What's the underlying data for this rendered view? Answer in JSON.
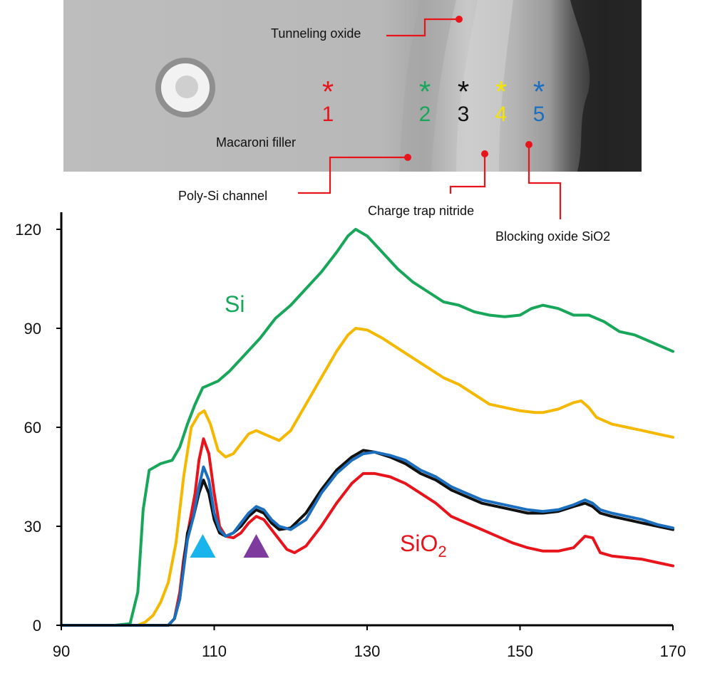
{
  "micrograph": {
    "labels": {
      "tunneling": "Tunneling oxide",
      "filler": "Macaroni filler",
      "channel": "Poly-Si channel",
      "nitride": "Charge trap nitride",
      "blocking": "Blocking oxide SiO2"
    },
    "markers": [
      {
        "symbol": "*",
        "number": "1",
        "color": "#e8141c"
      },
      {
        "symbol": "*",
        "number": "2",
        "color": "#18a65a"
      },
      {
        "symbol": "*",
        "number": "3",
        "color": "#111111"
      },
      {
        "symbol": "*",
        "number": "4",
        "color": "#f5e400"
      },
      {
        "symbol": "*",
        "number": "5",
        "color": "#1c6fbf"
      }
    ],
    "leader_color": "#e8141c"
  },
  "chart_data": {
    "type": "line",
    "title": "",
    "xlabel": "",
    "ylabel": "",
    "xlim": [
      90,
      170
    ],
    "ylim": [
      0,
      120
    ],
    "x_ticks": [
      "90",
      "110",
      "130",
      "150",
      "170"
    ],
    "y_ticks": [
      "0",
      "30",
      "60",
      "90",
      "120"
    ],
    "grid": false,
    "annotations": {
      "si": {
        "text": "Si",
        "color": "#18a65a"
      },
      "sio2": {
        "text": "SiO",
        "subscript": "2",
        "color": "#e8141c"
      }
    },
    "triangles": [
      {
        "x": 108.5,
        "color": "#1ab4ec"
      },
      {
        "x": 115.5,
        "color": "#7e3b9d"
      }
    ],
    "series": [
      {
        "color": "#18a65a",
        "points": [
          [
            90,
            0
          ],
          [
            97,
            0
          ],
          [
            99,
            0.5
          ],
          [
            100,
            10
          ],
          [
            100.7,
            35
          ],
          [
            101.5,
            47
          ],
          [
            103,
            49
          ],
          [
            104.5,
            50
          ],
          [
            105.5,
            54
          ],
          [
            106.5,
            61
          ],
          [
            107.5,
            67
          ],
          [
            108.5,
            72
          ],
          [
            109.5,
            73
          ],
          [
            110.5,
            74
          ],
          [
            112,
            77
          ],
          [
            114,
            82
          ],
          [
            116,
            87
          ],
          [
            118,
            93
          ],
          [
            120,
            97
          ],
          [
            122,
            102
          ],
          [
            124,
            107
          ],
          [
            126,
            113
          ],
          [
            127.5,
            118
          ],
          [
            128.5,
            120
          ],
          [
            130,
            118
          ],
          [
            132,
            113
          ],
          [
            134,
            108
          ],
          [
            136,
            104
          ],
          [
            138,
            101
          ],
          [
            140,
            98
          ],
          [
            142,
            97
          ],
          [
            144,
            95
          ],
          [
            146,
            94
          ],
          [
            148,
            93.5
          ],
          [
            150,
            94
          ],
          [
            151.5,
            96
          ],
          [
            153,
            97
          ],
          [
            155,
            96
          ],
          [
            157,
            94
          ],
          [
            159,
            94
          ],
          [
            161,
            92
          ],
          [
            163,
            89
          ],
          [
            165,
            88
          ],
          [
            167,
            86
          ],
          [
            170,
            83
          ]
        ]
      },
      {
        "color": "#f5b800",
        "points": [
          [
            90,
            0
          ],
          [
            100,
            0
          ],
          [
            101,
            1
          ],
          [
            102,
            3
          ],
          [
            103,
            7
          ],
          [
            104,
            13
          ],
          [
            105,
            25
          ],
          [
            106,
            45
          ],
          [
            107,
            60
          ],
          [
            108,
            64
          ],
          [
            108.7,
            65
          ],
          [
            109.5,
            61
          ],
          [
            110.5,
            53
          ],
          [
            111.5,
            51
          ],
          [
            112.5,
            52
          ],
          [
            113.5,
            55
          ],
          [
            114.5,
            58
          ],
          [
            115.5,
            59
          ],
          [
            116.5,
            58
          ],
          [
            117.5,
            57
          ],
          [
            118.5,
            56
          ],
          [
            120,
            59
          ],
          [
            122,
            67
          ],
          [
            124,
            75
          ],
          [
            126,
            83
          ],
          [
            127.5,
            88
          ],
          [
            128.5,
            90
          ],
          [
            130,
            89.5
          ],
          [
            132,
            87
          ],
          [
            134,
            84
          ],
          [
            136,
            81
          ],
          [
            138,
            78
          ],
          [
            140,
            75
          ],
          [
            142,
            73
          ],
          [
            144,
            70
          ],
          [
            146,
            67
          ],
          [
            148,
            66
          ],
          [
            150,
            65
          ],
          [
            152,
            64.5
          ],
          [
            153,
            64.5
          ],
          [
            155,
            65.5
          ],
          [
            157,
            67.5
          ],
          [
            158,
            68
          ],
          [
            159,
            66
          ],
          [
            160,
            63
          ],
          [
            162,
            61
          ],
          [
            164,
            60
          ],
          [
            166,
            59
          ],
          [
            168,
            58
          ],
          [
            170,
            57
          ]
        ]
      },
      {
        "color": "#e8141c",
        "points": [
          [
            90,
            0
          ],
          [
            104,
            0
          ],
          [
            104.8,
            2
          ],
          [
            105.5,
            10
          ],
          [
            106,
            20
          ],
          [
            106.7,
            30
          ],
          [
            107.5,
            40
          ],
          [
            108,
            50
          ],
          [
            108.6,
            56.5
          ],
          [
            109.3,
            52
          ],
          [
            110,
            40
          ],
          [
            110.7,
            30
          ],
          [
            111.5,
            27
          ],
          [
            112.5,
            26.5
          ],
          [
            113.5,
            28
          ],
          [
            114.5,
            31
          ],
          [
            115.5,
            33
          ],
          [
            116.5,
            32
          ],
          [
            117.5,
            29
          ],
          [
            118.5,
            26
          ],
          [
            119.5,
            23
          ],
          [
            120.5,
            22
          ],
          [
            122,
            24
          ],
          [
            124,
            30
          ],
          [
            126,
            37
          ],
          [
            128,
            43
          ],
          [
            129.5,
            46
          ],
          [
            131,
            46
          ],
          [
            133,
            45
          ],
          [
            135,
            43
          ],
          [
            137,
            40
          ],
          [
            139,
            37
          ],
          [
            141,
            33
          ],
          [
            143,
            31
          ],
          [
            145,
            29
          ],
          [
            147,
            27
          ],
          [
            149,
            25
          ],
          [
            151,
            23.5
          ],
          [
            153,
            22.5
          ],
          [
            155,
            22.5
          ],
          [
            157,
            23.5
          ],
          [
            158.5,
            27
          ],
          [
            159.5,
            26.5
          ],
          [
            160.5,
            22
          ],
          [
            162,
            21
          ],
          [
            164,
            20.5
          ],
          [
            166,
            20
          ],
          [
            168,
            19
          ],
          [
            170,
            18
          ]
        ]
      },
      {
        "color": "#111111",
        "points": [
          [
            90,
            0
          ],
          [
            104,
            0
          ],
          [
            104.8,
            2
          ],
          [
            105.5,
            8
          ],
          [
            106,
            18
          ],
          [
            106.5,
            28
          ],
          [
            107.3,
            33
          ],
          [
            108,
            40
          ],
          [
            108.6,
            44
          ],
          [
            109.3,
            40
          ],
          [
            110,
            32
          ],
          [
            110.7,
            28
          ],
          [
            111.5,
            27
          ],
          [
            112.5,
            28
          ],
          [
            113.5,
            30
          ],
          [
            114.5,
            33
          ],
          [
            115.5,
            35
          ],
          [
            116.5,
            34
          ],
          [
            117.5,
            31
          ],
          [
            118.5,
            29
          ],
          [
            120,
            29.5
          ],
          [
            122,
            34
          ],
          [
            124,
            41
          ],
          [
            126,
            47
          ],
          [
            128,
            51
          ],
          [
            129.5,
            53
          ],
          [
            131,
            52.5
          ],
          [
            133,
            51
          ],
          [
            135,
            49
          ],
          [
            137,
            46
          ],
          [
            139,
            44
          ],
          [
            141,
            41
          ],
          [
            143,
            39
          ],
          [
            145,
            37
          ],
          [
            147,
            36
          ],
          [
            149,
            35
          ],
          [
            151,
            34
          ],
          [
            153,
            34
          ],
          [
            155,
            34.5
          ],
          [
            157,
            36
          ],
          [
            158.5,
            37
          ],
          [
            159.5,
            36
          ],
          [
            160.5,
            34
          ],
          [
            162,
            33
          ],
          [
            164,
            32
          ],
          [
            166,
            31
          ],
          [
            168,
            30
          ],
          [
            170,
            29
          ]
        ]
      },
      {
        "color": "#1c6fbf",
        "points": [
          [
            90,
            0
          ],
          [
            104,
            0
          ],
          [
            104.8,
            2
          ],
          [
            105.5,
            8
          ],
          [
            106,
            17
          ],
          [
            106.5,
            26
          ],
          [
            107.3,
            33
          ],
          [
            108,
            42
          ],
          [
            108.6,
            48
          ],
          [
            109.3,
            44
          ],
          [
            110,
            34
          ],
          [
            110.7,
            29
          ],
          [
            111.5,
            27
          ],
          [
            112.5,
            28
          ],
          [
            113.5,
            31
          ],
          [
            114.5,
            34
          ],
          [
            115.5,
            36
          ],
          [
            116.5,
            35
          ],
          [
            117.5,
            32
          ],
          [
            118.5,
            30
          ],
          [
            120,
            29
          ],
          [
            122,
            32
          ],
          [
            124,
            40
          ],
          [
            126,
            46
          ],
          [
            128,
            50
          ],
          [
            129.5,
            52
          ],
          [
            131,
            52.5
          ],
          [
            133,
            51.5
          ],
          [
            135,
            50
          ],
          [
            137,
            47
          ],
          [
            139,
            45
          ],
          [
            141,
            42
          ],
          [
            143,
            40
          ],
          [
            145,
            38
          ],
          [
            147,
            37
          ],
          [
            149,
            36
          ],
          [
            151,
            35
          ],
          [
            153,
            34.5
          ],
          [
            155,
            35
          ],
          [
            157,
            36.5
          ],
          [
            158.5,
            38
          ],
          [
            159.5,
            37
          ],
          [
            160.5,
            35
          ],
          [
            162,
            34
          ],
          [
            164,
            33
          ],
          [
            166,
            32
          ],
          [
            168,
            30.5
          ],
          [
            170,
            29.5
          ]
        ]
      }
    ]
  }
}
